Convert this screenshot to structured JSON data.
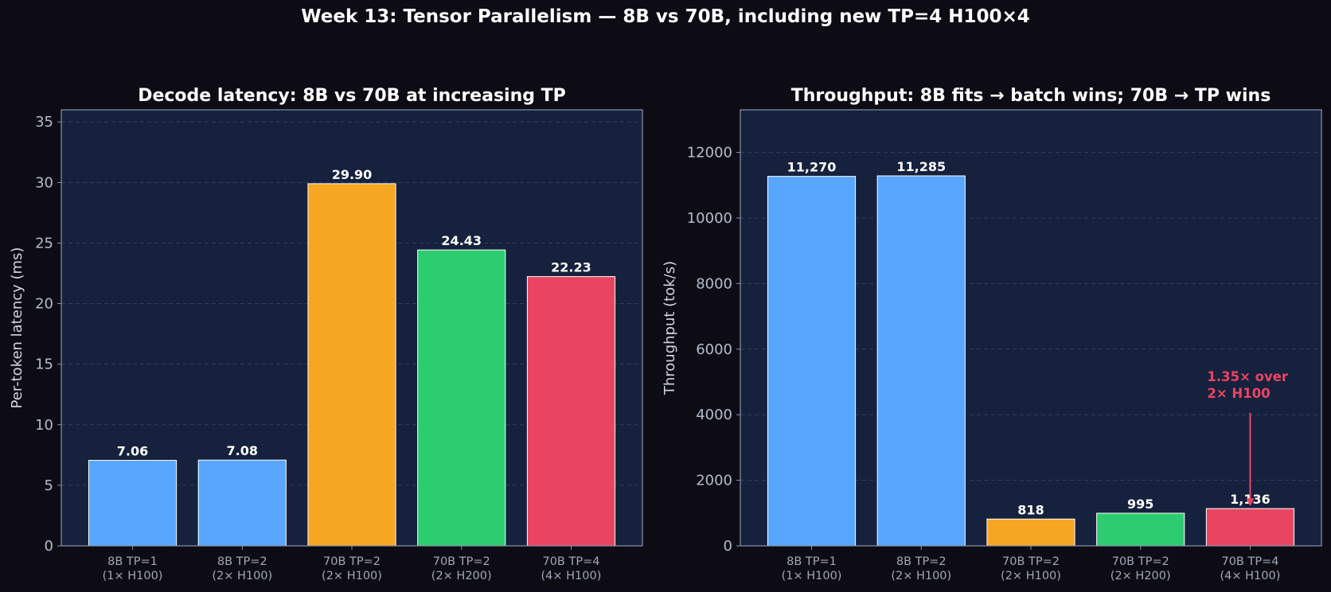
{
  "figure": {
    "title": "Week 13: Tensor Parallelism — 8B vs 70B, including new TP=4 H100×4",
    "background": "#0d0c14",
    "panel_background": "#16213e"
  },
  "chart_data": [
    {
      "type": "bar",
      "title": "Decode latency: 8B vs 70B at increasing TP",
      "xlabel": "",
      "ylabel": "Per-token latency (ms)",
      "categories": [
        [
          "8B TP=1",
          "(1× H100)"
        ],
        [
          "8B TP=2",
          "(2× H100)"
        ],
        [
          "70B TP=2",
          "(2× H100)"
        ],
        [
          "70B TP=2",
          "(2× H200)"
        ],
        [
          "70B TP=4",
          "(4× H100)"
        ]
      ],
      "values": [
        7.06,
        7.08,
        29.9,
        24.43,
        22.23
      ],
      "value_labels": [
        "7.06",
        "7.08",
        "29.90",
        "24.43",
        "22.23"
      ],
      "colors": [
        "#58a6ff",
        "#58a6ff",
        "#f5a623",
        "#2ecc71",
        "#e94560"
      ],
      "ylim": [
        0,
        36
      ],
      "yticks": [
        0,
        5,
        10,
        15,
        20,
        25,
        30,
        35
      ],
      "grid": "y-dashed"
    },
    {
      "type": "bar",
      "title": "Throughput: 8B fits → batch wins; 70B → TP wins",
      "xlabel": "",
      "ylabel": "Throughput (tok/s)",
      "categories": [
        [
          "8B TP=1",
          "(1× H100)"
        ],
        [
          "8B TP=2",
          "(2× H100)"
        ],
        [
          "70B TP=2",
          "(2× H100)"
        ],
        [
          "70B TP=2",
          "(2× H200)"
        ],
        [
          "70B TP=4",
          "(4× H100)"
        ]
      ],
      "values": [
        11270,
        11285,
        818,
        995,
        1136
      ],
      "value_labels": [
        "11,270",
        "11,285",
        "818",
        "995",
        "1,136"
      ],
      "colors": [
        "#58a6ff",
        "#58a6ff",
        "#f5a623",
        "#2ecc71",
        "#e94560"
      ],
      "ylim": [
        0,
        13300
      ],
      "yticks": [
        0,
        2000,
        4000,
        6000,
        8000,
        10000,
        12000
      ],
      "grid": "y-dashed",
      "annotation": {
        "lines": [
          "1.35× over",
          "2× H100"
        ],
        "color": "#e94560",
        "target_index": 4,
        "text_value": 4300
      }
    }
  ]
}
